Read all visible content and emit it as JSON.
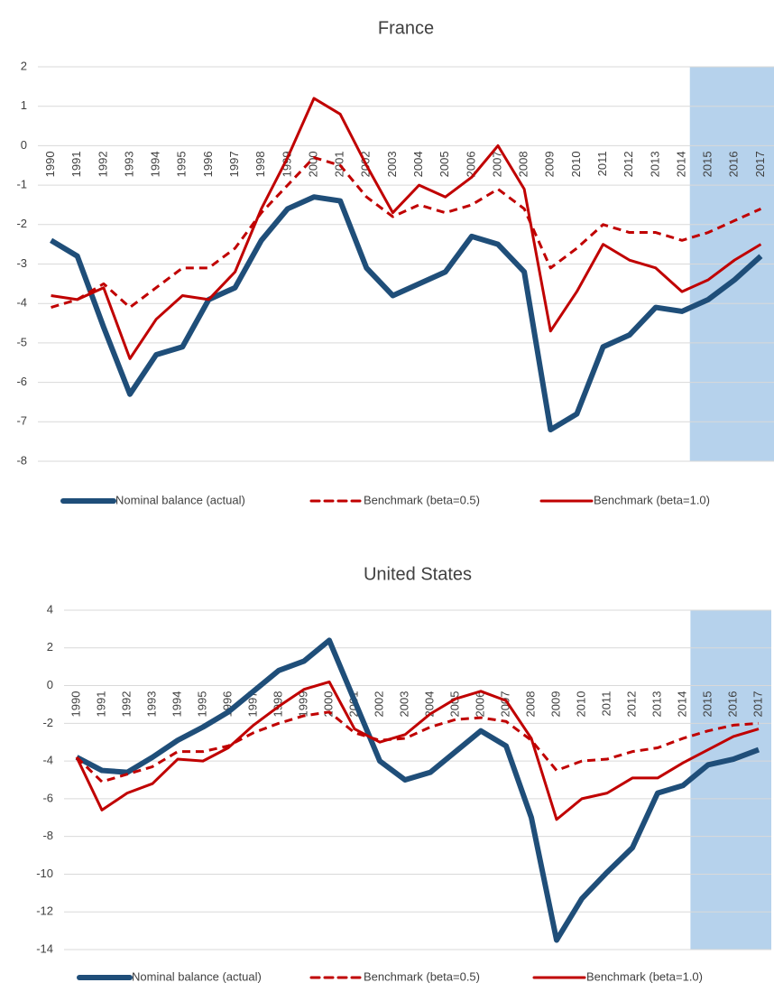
{
  "chart_data": [
    {
      "type": "line",
      "title": "France",
      "categories": [
        "1990",
        "1991",
        "1992",
        "1993",
        "1994",
        "1995",
        "1996",
        "1997",
        "1998",
        "1999",
        "2000",
        "2001",
        "2002",
        "2003",
        "2004",
        "2005",
        "2006",
        "2007",
        "2008",
        "2009",
        "2010",
        "2011",
        "2012",
        "2013",
        "2014",
        "2015",
        "2016",
        "2017"
      ],
      "ylim": [
        -8,
        2
      ],
      "yticks": [
        2,
        1,
        0,
        -1,
        -2,
        -3,
        -4,
        -5,
        -6,
        -7,
        -8
      ],
      "grid": true,
      "legend": "bottom",
      "shaded_from": "2014",
      "series": [
        {
          "name": "Nominal balance (actual)",
          "color": "#1f4e79",
          "dash": false,
          "values": [
            -2.4,
            -2.8,
            -4.6,
            -6.3,
            -5.3,
            -5.1,
            -3.9,
            -3.6,
            -2.4,
            -1.6,
            -1.3,
            -1.4,
            -3.1,
            -3.8,
            -3.5,
            -3.2,
            -2.3,
            -2.5,
            -3.2,
            -7.2,
            -6.8,
            -5.1,
            -4.8,
            -4.1,
            -4.2,
            -3.9,
            -3.4,
            -2.8
          ]
        },
        {
          "name": "Benchmark (beta=0.5)",
          "color": "#c00000",
          "dash": true,
          "values": [
            -4.1,
            -3.9,
            -3.5,
            -4.1,
            -3.6,
            -3.1,
            -3.1,
            -2.6,
            -1.7,
            -1.0,
            -0.3,
            -0.5,
            -1.3,
            -1.8,
            -1.5,
            -1.7,
            -1.5,
            -1.1,
            -1.6,
            -3.1,
            -2.6,
            -2.0,
            -2.2,
            -2.2,
            -2.4,
            -2.2,
            -1.9,
            -1.6
          ]
        },
        {
          "name": "Benchmark (beta=1.0)",
          "color": "#c00000",
          "dash": false,
          "values": [
            -3.8,
            -3.9,
            -3.6,
            -5.4,
            -4.4,
            -3.8,
            -3.9,
            -3.2,
            -1.6,
            -0.3,
            1.2,
            0.8,
            -0.5,
            -1.7,
            -1.0,
            -1.3,
            -0.8,
            0.0,
            -1.1,
            -4.7,
            -3.7,
            -2.5,
            -2.9,
            -3.1,
            -3.7,
            -3.4,
            -2.9,
            -2.5
          ]
        }
      ]
    },
    {
      "type": "line",
      "title": "United States",
      "categories": [
        "1990",
        "1991",
        "1992",
        "1993",
        "1994",
        "1995",
        "1996",
        "1997",
        "1998",
        "1999",
        "2000",
        "2001",
        "2002",
        "2003",
        "2004",
        "2005",
        "2006",
        "2007",
        "2008",
        "2009",
        "2010",
        "2011",
        "2012",
        "2013",
        "2014",
        "2015",
        "2016",
        "2017"
      ],
      "ylim": [
        -14,
        4
      ],
      "yticks": [
        4,
        2,
        0,
        -2,
        -4,
        -6,
        -8,
        -10,
        -12,
        -14
      ],
      "grid": true,
      "legend": "bottom",
      "shaded_from": "2014",
      "series": [
        {
          "name": "Nominal balance (actual)",
          "color": "#1f4e79",
          "dash": false,
          "values": [
            -3.8,
            -4.5,
            -4.6,
            -3.8,
            -2.9,
            -2.2,
            -1.4,
            -0.3,
            0.8,
            1.3,
            2.4,
            -0.8,
            -4.0,
            -5.0,
            -4.6,
            -3.5,
            -2.4,
            -3.2,
            -7.0,
            -13.5,
            -11.3,
            -9.9,
            -8.6,
            -5.7,
            -5.3,
            -4.2,
            -3.9,
            -3.4
          ]
        },
        {
          "name": "Benchmark (beta=0.5)",
          "color": "#c00000",
          "dash": true,
          "values": [
            -3.8,
            -5.1,
            -4.7,
            -4.3,
            -3.5,
            -3.5,
            -3.2,
            -2.5,
            -2.0,
            -1.6,
            -1.4,
            -2.5,
            -2.9,
            -2.8,
            -2.2,
            -1.8,
            -1.7,
            -1.9,
            -2.9,
            -4.5,
            -4.0,
            -3.9,
            -3.5,
            -3.3,
            -2.8,
            -2.4,
            -2.1,
            -2.0
          ]
        },
        {
          "name": "Benchmark (beta=1.0)",
          "color": "#c00000",
          "dash": false,
          "values": [
            -3.8,
            -6.6,
            -5.7,
            -5.2,
            -3.9,
            -4.0,
            -3.3,
            -2.1,
            -1.1,
            -0.2,
            0.2,
            -2.3,
            -3.0,
            -2.6,
            -1.5,
            -0.7,
            -0.3,
            -0.8,
            -2.8,
            -7.1,
            -6.0,
            -5.7,
            -4.9,
            -4.9,
            -4.1,
            -3.4,
            -2.7,
            -2.3
          ]
        }
      ]
    }
  ]
}
